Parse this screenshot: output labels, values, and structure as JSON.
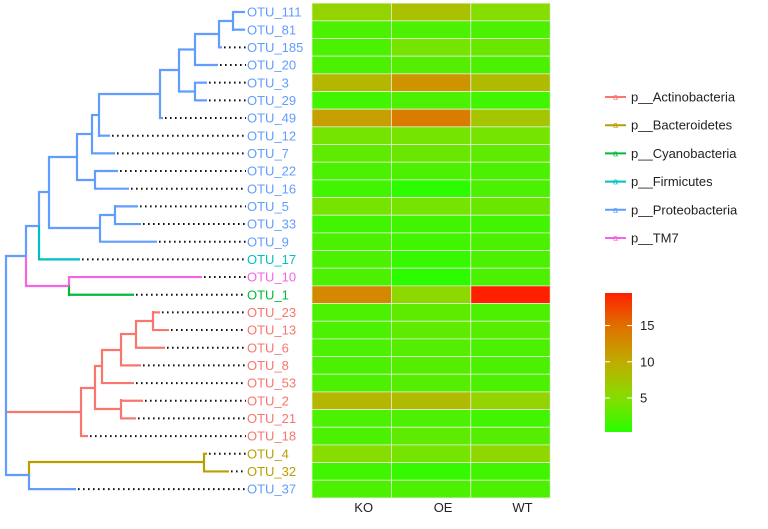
{
  "chart_data": {
    "type": "heatmap",
    "columns": [
      "KO",
      "OE",
      "WT"
    ],
    "rows": [
      {
        "label": "OTU_111",
        "phylum": "p__Proteobacteria",
        "values": [
          6,
          8,
          5
        ]
      },
      {
        "label": "OTU_81",
        "phylum": "p__Proteobacteria",
        "values": [
          2,
          2,
          2
        ]
      },
      {
        "label": "OTU_185",
        "phylum": "p__Proteobacteria",
        "values": [
          2,
          4,
          3.5
        ]
      },
      {
        "label": "OTU_20",
        "phylum": "p__Proteobacteria",
        "values": [
          2,
          2.5,
          2
        ]
      },
      {
        "label": "OTU_3",
        "phylum": "p__Proteobacteria",
        "values": [
          9,
          12,
          8.5
        ]
      },
      {
        "label": "OTU_29",
        "phylum": "p__Proteobacteria",
        "values": [
          1.5,
          2,
          1.5
        ]
      },
      {
        "label": "OTU_49",
        "phylum": "p__Proteobacteria",
        "values": [
          11,
          14,
          7.5
        ]
      },
      {
        "label": "OTU_12",
        "phylum": "p__Proteobacteria",
        "values": [
          4,
          4,
          4
        ]
      },
      {
        "label": "OTU_7",
        "phylum": "p__Proteobacteria",
        "values": [
          3,
          3.5,
          3
        ]
      },
      {
        "label": "OTU_22",
        "phylum": "p__Proteobacteria",
        "values": [
          2,
          2,
          2
        ]
      },
      {
        "label": "OTU_16",
        "phylum": "p__Proteobacteria",
        "values": [
          1.5,
          0.5,
          2
        ]
      },
      {
        "label": "OTU_5",
        "phylum": "p__Proteobacteria",
        "values": [
          4,
          4,
          3.5
        ]
      },
      {
        "label": "OTU_33",
        "phylum": "p__Proteobacteria",
        "values": [
          1.5,
          1.5,
          1.5
        ]
      },
      {
        "label": "OTU_9",
        "phylum": "p__Proteobacteria",
        "values": [
          2,
          1.5,
          2
        ]
      },
      {
        "label": "OTU_17",
        "phylum": "p__Firmicutes",
        "values": [
          2,
          1,
          2
        ]
      },
      {
        "label": "OTU_10",
        "phylum": "p__TM7",
        "values": [
          2,
          0.5,
          2
        ]
      },
      {
        "label": "OTU_1",
        "phylum": "p__Cyanobacteria",
        "values": [
          13,
          5.5,
          19.5
        ]
      },
      {
        "label": "OTU_23",
        "phylum": "p__Actinobacteria",
        "values": [
          2,
          3,
          2
        ]
      },
      {
        "label": "OTU_13",
        "phylum": "p__Actinobacteria",
        "values": [
          2,
          3,
          2.5
        ]
      },
      {
        "label": "OTU_6",
        "phylum": "p__Actinobacteria",
        "values": [
          2,
          2.5,
          2
        ]
      },
      {
        "label": "OTU_8",
        "phylum": "p__Actinobacteria",
        "values": [
          2,
          2.5,
          2
        ]
      },
      {
        "label": "OTU_53",
        "phylum": "p__Actinobacteria",
        "values": [
          2,
          2.5,
          2
        ]
      },
      {
        "label": "OTU_2",
        "phylum": "p__Actinobacteria",
        "values": [
          9,
          8.5,
          6
        ]
      },
      {
        "label": "OTU_21",
        "phylum": "p__Actinobacteria",
        "values": [
          2,
          2,
          1.5
        ]
      },
      {
        "label": "OTU_18",
        "phylum": "p__Actinobacteria",
        "values": [
          2,
          3,
          2.5
        ]
      },
      {
        "label": "OTU_4",
        "phylum": "p__Bacteroidetes",
        "values": [
          5,
          4,
          5.5
        ]
      },
      {
        "label": "OTU_32",
        "phylum": "p__Bacteroidetes",
        "values": [
          1.5,
          1,
          1.5
        ]
      },
      {
        "label": "OTU_37",
        "phylum": "p__Proteobacteria",
        "values": [
          2,
          2,
          2
        ]
      }
    ],
    "color_scale": {
      "min": 0.3,
      "max": 19.5,
      "ticks": [
        "5",
        "10",
        "15"
      ],
      "low_color": "#22ff00",
      "high_color": "#ff2000"
    },
    "legend": {
      "placement": "right",
      "items": [
        {
          "label": "p__Actinobacteria",
          "color": "#f8766d"
        },
        {
          "label": "p__Bacteroidetes",
          "color": "#b79f00"
        },
        {
          "label": "p__Cyanobacteria",
          "color": "#00ba38"
        },
        {
          "label": "p__Firmicutes",
          "color": "#00bfc4"
        },
        {
          "label": "p__Proteobacteria",
          "color": "#619cff"
        },
        {
          "label": "p__TM7",
          "color": "#f564e3"
        }
      ]
    }
  }
}
